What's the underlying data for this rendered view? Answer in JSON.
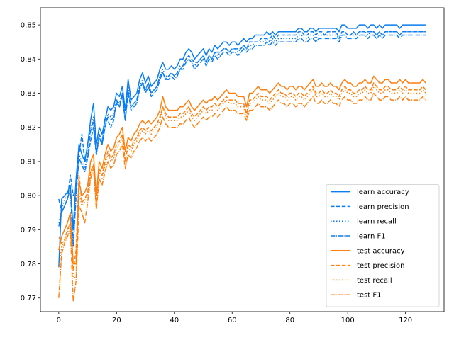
{
  "chart_data": {
    "type": "line",
    "title": "",
    "xlabel": "",
    "ylabel": "",
    "xlim": [
      -6.35,
      133.35
    ],
    "ylim": [
      0.766,
      0.855
    ],
    "xticks": [
      0,
      20,
      40,
      60,
      80,
      100,
      120
    ],
    "yticks": [
      0.77,
      0.78,
      0.79,
      0.8,
      0.81,
      0.82,
      0.83,
      0.84,
      0.85
    ],
    "xtick_labels": [
      "0",
      "20",
      "40",
      "60",
      "80",
      "100",
      "120"
    ],
    "ytick_labels": [
      "0.77",
      "0.78",
      "0.79",
      "0.80",
      "0.81",
      "0.82",
      "0.83",
      "0.84",
      "0.85"
    ],
    "grid": false,
    "legend_position": "lower-right",
    "colors": {
      "learn": "#1f77b4",
      "learn_display": "#0a7df0",
      "test": "#ff7f0e"
    },
    "series": [
      {
        "name": "learn accuracy",
        "group": "learn",
        "style": "solid",
        "values": [
          0.779,
          0.799,
          0.8,
          0.801,
          0.803,
          0.79,
          0.805,
          0.815,
          0.812,
          0.81,
          0.815,
          0.822,
          0.827,
          0.815,
          0.82,
          0.818,
          0.822,
          0.826,
          0.825,
          0.826,
          0.83,
          0.829,
          0.832,
          0.825,
          0.834,
          0.828,
          0.829,
          0.83,
          0.834,
          0.836,
          0.833,
          0.835,
          0.832,
          0.833,
          0.834,
          0.837,
          0.839,
          0.837,
          0.837,
          0.838,
          0.837,
          0.838,
          0.84,
          0.84,
          0.842,
          0.843,
          0.842,
          0.84,
          0.841,
          0.842,
          0.843,
          0.841,
          0.843,
          0.842,
          0.844,
          0.843,
          0.844,
          0.845,
          0.845,
          0.844,
          0.845,
          0.845,
          0.844,
          0.845,
          0.846,
          0.845,
          0.846,
          0.846,
          0.847,
          0.847,
          0.847,
          0.847,
          0.848,
          0.847,
          0.848,
          0.847,
          0.848,
          0.848,
          0.848,
          0.848,
          0.848,
          0.848,
          0.848,
          0.849,
          0.849,
          0.848,
          0.848,
          0.849,
          0.849,
          0.848,
          0.849,
          0.849,
          0.849,
          0.849,
          0.849,
          0.849,
          0.849,
          0.848,
          0.85,
          0.85,
          0.849,
          0.849,
          0.849,
          0.849,
          0.85,
          0.85,
          0.85,
          0.849,
          0.85,
          0.85,
          0.849,
          0.85,
          0.849,
          0.85,
          0.85,
          0.85,
          0.85,
          0.85,
          0.849,
          0.85,
          0.85,
          0.85,
          0.85,
          0.85,
          0.85,
          0.85,
          0.85,
          0.85
        ]
      },
      {
        "name": "learn precision",
        "group": "learn",
        "style": "dashed",
        "values": [
          0.799,
          0.795,
          0.797,
          0.799,
          0.806,
          0.8,
          0.802,
          0.812,
          0.818,
          0.81,
          0.811,
          0.816,
          0.82,
          0.812,
          0.818,
          0.815,
          0.823,
          0.822,
          0.82,
          0.822,
          0.828,
          0.826,
          0.83,
          0.822,
          0.83,
          0.826,
          0.827,
          0.828,
          0.832,
          0.833,
          0.831,
          0.833,
          0.83,
          0.831,
          0.832,
          0.835,
          0.836,
          0.834,
          0.835,
          0.836,
          0.835,
          0.836,
          0.837,
          0.838,
          0.84,
          0.841,
          0.84,
          0.839,
          0.839,
          0.84,
          0.841,
          0.839,
          0.841,
          0.84,
          0.842,
          0.842,
          0.842,
          0.843,
          0.843,
          0.842,
          0.843,
          0.843,
          0.843,
          0.843,
          0.844,
          0.843,
          0.845,
          0.845,
          0.845,
          0.845,
          0.846,
          0.846,
          0.846,
          0.846,
          0.847,
          0.846,
          0.847,
          0.847,
          0.847,
          0.847,
          0.847,
          0.847,
          0.847,
          0.848,
          0.848,
          0.847,
          0.847,
          0.848,
          0.848,
          0.847,
          0.848,
          0.848,
          0.847,
          0.848,
          0.848,
          0.848,
          0.848,
          0.846,
          0.848,
          0.848,
          0.847,
          0.847,
          0.848,
          0.847,
          0.848,
          0.848,
          0.848,
          0.848,
          0.848,
          0.848,
          0.847,
          0.848,
          0.847,
          0.848,
          0.848,
          0.848,
          0.848,
          0.848,
          0.847,
          0.848,
          0.848,
          0.848,
          0.848,
          0.848,
          0.848,
          0.848,
          0.848,
          0.848
        ]
      },
      {
        "name": "learn recall",
        "group": "learn",
        "style": "dotted",
        "values": [
          0.792,
          0.796,
          0.799,
          0.8,
          0.802,
          0.786,
          0.8,
          0.812,
          0.81,
          0.808,
          0.812,
          0.82,
          0.823,
          0.813,
          0.818,
          0.816,
          0.82,
          0.824,
          0.823,
          0.824,
          0.828,
          0.827,
          0.83,
          0.823,
          0.832,
          0.826,
          0.827,
          0.828,
          0.832,
          0.834,
          0.831,
          0.833,
          0.83,
          0.831,
          0.832,
          0.835,
          0.837,
          0.835,
          0.835,
          0.836,
          0.835,
          0.836,
          0.838,
          0.838,
          0.84,
          0.841,
          0.84,
          0.838,
          0.839,
          0.84,
          0.841,
          0.839,
          0.841,
          0.84,
          0.842,
          0.841,
          0.842,
          0.843,
          0.843,
          0.842,
          0.843,
          0.843,
          0.842,
          0.843,
          0.844,
          0.843,
          0.844,
          0.844,
          0.845,
          0.845,
          0.845,
          0.845,
          0.846,
          0.845,
          0.846,
          0.845,
          0.846,
          0.846,
          0.846,
          0.846,
          0.846,
          0.846,
          0.846,
          0.847,
          0.847,
          0.846,
          0.846,
          0.847,
          0.847,
          0.846,
          0.847,
          0.847,
          0.847,
          0.847,
          0.847,
          0.847,
          0.847,
          0.846,
          0.848,
          0.848,
          0.847,
          0.847,
          0.847,
          0.847,
          0.848,
          0.848,
          0.848,
          0.847,
          0.848,
          0.848,
          0.847,
          0.848,
          0.847,
          0.848,
          0.848,
          0.848,
          0.848,
          0.848,
          0.847,
          0.848,
          0.848,
          0.848,
          0.848,
          0.848,
          0.848,
          0.848,
          0.848,
          0.848
        ]
      },
      {
        "name": "learn F1",
        "group": "learn",
        "style": "dashdot",
        "values": [
          0.791,
          0.795,
          0.797,
          0.799,
          0.802,
          0.785,
          0.8,
          0.811,
          0.809,
          0.807,
          0.811,
          0.819,
          0.822,
          0.812,
          0.817,
          0.815,
          0.82,
          0.823,
          0.822,
          0.823,
          0.827,
          0.826,
          0.829,
          0.822,
          0.831,
          0.825,
          0.826,
          0.827,
          0.831,
          0.833,
          0.83,
          0.832,
          0.829,
          0.83,
          0.831,
          0.834,
          0.836,
          0.834,
          0.834,
          0.835,
          0.834,
          0.835,
          0.837,
          0.837,
          0.839,
          0.84,
          0.839,
          0.837,
          0.838,
          0.839,
          0.84,
          0.838,
          0.84,
          0.839,
          0.841,
          0.84,
          0.841,
          0.842,
          0.842,
          0.841,
          0.842,
          0.842,
          0.841,
          0.842,
          0.843,
          0.842,
          0.843,
          0.843,
          0.844,
          0.844,
          0.844,
          0.844,
          0.845,
          0.844,
          0.845,
          0.844,
          0.845,
          0.845,
          0.845,
          0.845,
          0.845,
          0.845,
          0.845,
          0.846,
          0.846,
          0.845,
          0.845,
          0.846,
          0.846,
          0.845,
          0.846,
          0.846,
          0.846,
          0.846,
          0.846,
          0.846,
          0.846,
          0.845,
          0.847,
          0.847,
          0.846,
          0.846,
          0.846,
          0.846,
          0.847,
          0.847,
          0.847,
          0.846,
          0.847,
          0.847,
          0.846,
          0.847,
          0.846,
          0.847,
          0.847,
          0.847,
          0.847,
          0.847,
          0.846,
          0.847,
          0.847,
          0.847,
          0.847,
          0.847,
          0.847,
          0.847,
          0.847,
          0.847
        ]
      },
      {
        "name": "test accuracy",
        "group": "test",
        "style": "solid",
        "values": [
          0.784,
          0.788,
          0.79,
          0.792,
          0.795,
          0.78,
          0.78,
          0.804,
          0.8,
          0.801,
          0.803,
          0.81,
          0.812,
          0.8,
          0.81,
          0.808,
          0.812,
          0.815,
          0.813,
          0.814,
          0.817,
          0.818,
          0.82,
          0.813,
          0.817,
          0.816,
          0.818,
          0.819,
          0.821,
          0.822,
          0.821,
          0.822,
          0.821,
          0.822,
          0.823,
          0.825,
          0.829,
          0.826,
          0.825,
          0.825,
          0.825,
          0.825,
          0.826,
          0.826,
          0.827,
          0.828,
          0.826,
          0.825,
          0.826,
          0.827,
          0.828,
          0.827,
          0.828,
          0.828,
          0.829,
          0.828,
          0.829,
          0.83,
          0.831,
          0.83,
          0.83,
          0.83,
          0.829,
          0.829,
          0.829,
          0.826,
          0.83,
          0.83,
          0.831,
          0.832,
          0.831,
          0.831,
          0.831,
          0.83,
          0.831,
          0.832,
          0.833,
          0.832,
          0.832,
          0.831,
          0.832,
          0.832,
          0.831,
          0.832,
          0.832,
          0.831,
          0.832,
          0.833,
          0.834,
          0.832,
          0.832,
          0.833,
          0.832,
          0.832,
          0.833,
          0.832,
          0.832,
          0.831,
          0.833,
          0.834,
          0.833,
          0.833,
          0.832,
          0.832,
          0.833,
          0.833,
          0.834,
          0.833,
          0.833,
          0.835,
          0.834,
          0.833,
          0.833,
          0.834,
          0.834,
          0.833,
          0.833,
          0.833,
          0.834,
          0.833,
          0.834,
          0.833,
          0.833,
          0.833,
          0.833,
          0.833,
          0.834,
          0.833
        ]
      },
      {
        "name": "test precision",
        "group": "test",
        "style": "dashed",
        "values": [
          0.788,
          0.786,
          0.787,
          0.79,
          0.792,
          0.778,
          0.784,
          0.806,
          0.798,
          0.799,
          0.801,
          0.807,
          0.809,
          0.798,
          0.808,
          0.806,
          0.81,
          0.813,
          0.811,
          0.812,
          0.815,
          0.816,
          0.818,
          0.81,
          0.815,
          0.814,
          0.816,
          0.817,
          0.819,
          0.82,
          0.819,
          0.82,
          0.819,
          0.82,
          0.821,
          0.823,
          0.826,
          0.824,
          0.823,
          0.823,
          0.823,
          0.823,
          0.824,
          0.824,
          0.825,
          0.826,
          0.824,
          0.823,
          0.824,
          0.825,
          0.826,
          0.825,
          0.826,
          0.826,
          0.827,
          0.826,
          0.827,
          0.828,
          0.829,
          0.828,
          0.828,
          0.828,
          0.827,
          0.827,
          0.827,
          0.824,
          0.828,
          0.828,
          0.829,
          0.83,
          0.829,
          0.829,
          0.829,
          0.828,
          0.829,
          0.83,
          0.831,
          0.83,
          0.83,
          0.829,
          0.83,
          0.83,
          0.829,
          0.83,
          0.83,
          0.829,
          0.83,
          0.831,
          0.832,
          0.83,
          0.83,
          0.831,
          0.83,
          0.83,
          0.831,
          0.83,
          0.83,
          0.829,
          0.831,
          0.832,
          0.831,
          0.831,
          0.83,
          0.83,
          0.831,
          0.831,
          0.832,
          0.831,
          0.831,
          0.833,
          0.832,
          0.831,
          0.831,
          0.832,
          0.832,
          0.831,
          0.831,
          0.831,
          0.832,
          0.831,
          0.832,
          0.831,
          0.831,
          0.831,
          0.831,
          0.831,
          0.832,
          0.831
        ]
      },
      {
        "name": "test recall",
        "group": "test",
        "style": "dotted",
        "values": [
          0.779,
          0.785,
          0.787,
          0.789,
          0.792,
          0.776,
          0.776,
          0.801,
          0.797,
          0.798,
          0.8,
          0.807,
          0.809,
          0.797,
          0.807,
          0.805,
          0.809,
          0.812,
          0.81,
          0.811,
          0.814,
          0.815,
          0.817,
          0.81,
          0.814,
          0.813,
          0.815,
          0.816,
          0.818,
          0.819,
          0.818,
          0.819,
          0.818,
          0.819,
          0.82,
          0.822,
          0.826,
          0.823,
          0.822,
          0.822,
          0.822,
          0.822,
          0.823,
          0.823,
          0.824,
          0.825,
          0.823,
          0.822,
          0.823,
          0.824,
          0.825,
          0.824,
          0.825,
          0.825,
          0.826,
          0.825,
          0.826,
          0.827,
          0.828,
          0.827,
          0.827,
          0.827,
          0.826,
          0.826,
          0.826,
          0.823,
          0.827,
          0.827,
          0.828,
          0.829,
          0.828,
          0.828,
          0.828,
          0.827,
          0.828,
          0.829,
          0.83,
          0.829,
          0.829,
          0.828,
          0.829,
          0.829,
          0.828,
          0.829,
          0.829,
          0.828,
          0.829,
          0.83,
          0.831,
          0.829,
          0.829,
          0.83,
          0.829,
          0.829,
          0.83,
          0.829,
          0.829,
          0.828,
          0.83,
          0.831,
          0.83,
          0.83,
          0.829,
          0.829,
          0.83,
          0.83,
          0.831,
          0.83,
          0.83,
          0.832,
          0.831,
          0.83,
          0.83,
          0.831,
          0.831,
          0.83,
          0.83,
          0.83,
          0.831,
          0.83,
          0.831,
          0.83,
          0.83,
          0.83,
          0.83,
          0.83,
          0.831,
          0.83
        ]
      },
      {
        "name": "test F1",
        "group": "test",
        "style": "dashdot",
        "values": [
          0.77,
          0.783,
          0.786,
          0.788,
          0.79,
          0.769,
          0.775,
          0.797,
          0.795,
          0.792,
          0.798,
          0.805,
          0.808,
          0.796,
          0.805,
          0.803,
          0.807,
          0.81,
          0.808,
          0.809,
          0.812,
          0.813,
          0.815,
          0.808,
          0.812,
          0.811,
          0.813,
          0.814,
          0.816,
          0.817,
          0.816,
          0.817,
          0.816,
          0.817,
          0.818,
          0.82,
          0.823,
          0.821,
          0.82,
          0.82,
          0.82,
          0.82,
          0.821,
          0.821,
          0.822,
          0.823,
          0.821,
          0.82,
          0.821,
          0.822,
          0.823,
          0.822,
          0.823,
          0.823,
          0.824,
          0.823,
          0.824,
          0.825,
          0.826,
          0.825,
          0.825,
          0.825,
          0.824,
          0.824,
          0.824,
          0.822,
          0.825,
          0.825,
          0.826,
          0.827,
          0.826,
          0.826,
          0.826,
          0.825,
          0.826,
          0.827,
          0.828,
          0.827,
          0.827,
          0.826,
          0.827,
          0.827,
          0.826,
          0.827,
          0.827,
          0.826,
          0.827,
          0.828,
          0.829,
          0.827,
          0.827,
          0.828,
          0.827,
          0.827,
          0.828,
          0.827,
          0.827,
          0.826,
          0.828,
          0.829,
          0.828,
          0.828,
          0.827,
          0.827,
          0.828,
          0.828,
          0.829,
          0.828,
          0.828,
          0.83,
          0.829,
          0.828,
          0.828,
          0.829,
          0.829,
          0.828,
          0.828,
          0.828,
          0.829,
          0.828,
          0.829,
          0.828,
          0.828,
          0.828,
          0.828,
          0.828,
          0.829,
          0.828
        ]
      }
    ]
  }
}
